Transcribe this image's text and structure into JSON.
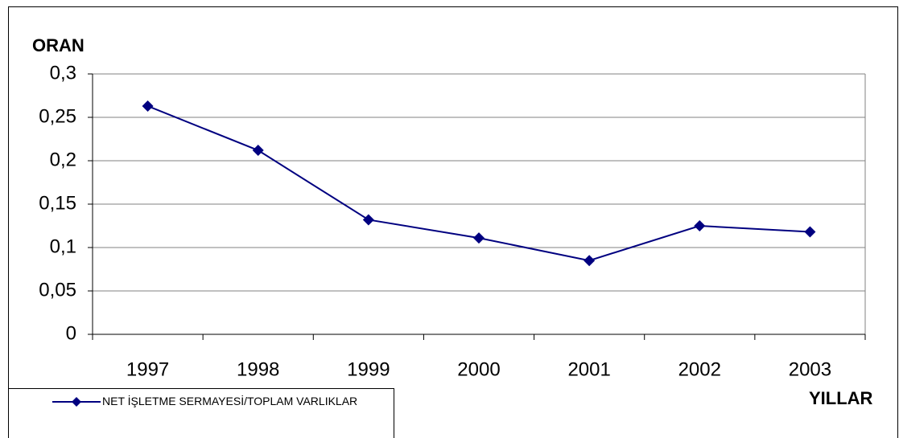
{
  "chart_data": {
    "type": "line",
    "y_label": "ORAN",
    "x_label": "YILLAR",
    "categories": [
      "1997",
      "1998",
      "1999",
      "2000",
      "2001",
      "2002",
      "2003"
    ],
    "series": [
      {
        "name": "NET İŞLETME SERMAYESİ/TOPLAM VARLIKLAR",
        "color": "#000080",
        "values": [
          0.263,
          0.212,
          0.132,
          0.111,
          0.085,
          0.125,
          0.118
        ]
      }
    ],
    "ylim": [
      0,
      0.3
    ],
    "yticks": [
      0,
      {
        "value": 0.05,
        "label": "0,05"
      },
      {
        "value": 0.1,
        "label": "0,1"
      },
      {
        "value": 0.15,
        "label": "0,15"
      },
      {
        "value": 0.2,
        "label": "0,2"
      },
      {
        "value": 0.25,
        "label": "0,25"
      },
      {
        "value": 0.3,
        "label": "0,3"
      }
    ],
    "grid": true,
    "legend": "bottom-left"
  }
}
